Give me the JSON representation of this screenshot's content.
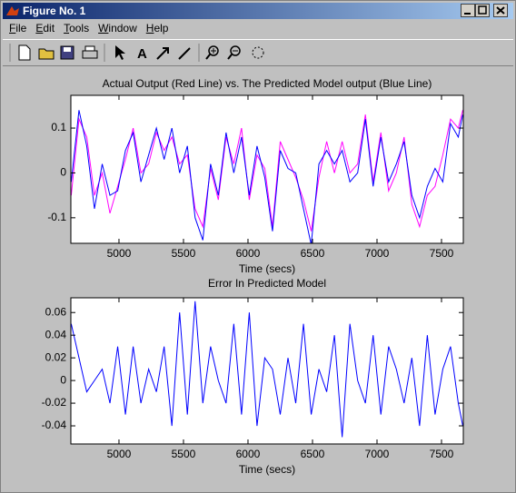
{
  "window": {
    "title": "Figure No. 1",
    "menu": [
      "File",
      "Edit",
      "Tools",
      "Window",
      "Help"
    ]
  },
  "chart_data": [
    {
      "type": "line",
      "title": "Actual Output (Red Line) vs. The Predicted Model output (Blue Line)",
      "x_label": "Time (secs)",
      "x": [
        4630,
        4690,
        4750,
        4810,
        4870,
        4930,
        4990,
        5050,
        5110,
        5170,
        5230,
        5290,
        5350,
        5410,
        5470,
        5530,
        5590,
        5650,
        5710,
        5770,
        5830,
        5890,
        5950,
        6010,
        6070,
        6130,
        6190,
        6250,
        6310,
        6370,
        6430,
        6490,
        6550,
        6610,
        6670,
        6730,
        6790,
        6850,
        6910,
        6970,
        7030,
        7090,
        7150,
        7210,
        7270,
        7330,
        7390,
        7450,
        7510,
        7570,
        7630,
        7665
      ],
      "series": [
        {
          "color": "#ff00ff",
          "values": [
            -0.05,
            0.12,
            0.08,
            -0.05,
            0.0,
            -0.09,
            -0.03,
            0.03,
            0.1,
            0.0,
            0.02,
            0.09,
            0.05,
            0.08,
            0.02,
            0.04,
            -0.08,
            -0.12,
            0.01,
            -0.06,
            0.08,
            0.02,
            0.1,
            -0.06,
            0.04,
            0.01,
            -0.12,
            0.07,
            0.03,
            -0.01,
            -0.06,
            -0.13,
            -0.01,
            0.07,
            0.0,
            0.07,
            0.0,
            0.02,
            0.13,
            -0.02,
            0.09,
            -0.04,
            0.0,
            0.08,
            -0.07,
            -0.12,
            -0.05,
            -0.03,
            0.04,
            0.12,
            0.1,
            0.14
          ]
        },
        {
          "color": "#0000ff",
          "values": [
            -0.02,
            0.14,
            0.06,
            -0.08,
            0.02,
            -0.05,
            -0.04,
            0.05,
            0.09,
            -0.02,
            0.04,
            0.1,
            0.03,
            0.1,
            0.0,
            0.06,
            -0.1,
            -0.15,
            0.02,
            -0.05,
            0.09,
            0.0,
            0.08,
            -0.05,
            0.06,
            -0.01,
            -0.13,
            0.05,
            0.01,
            0.0,
            -0.08,
            -0.16,
            0.02,
            0.05,
            0.02,
            0.05,
            -0.02,
            0.0,
            0.12,
            -0.03,
            0.08,
            -0.02,
            0.02,
            0.07,
            -0.05,
            -0.1,
            -0.03,
            0.01,
            -0.02,
            0.11,
            0.08,
            0.13
          ]
        }
      ],
      "xlim": [
        4627,
        7669
      ],
      "xticks": [
        5000,
        5500,
        6000,
        6500,
        7000,
        7500
      ],
      "ylim": [
        -0.157,
        0.173
      ],
      "yticks": [
        0.1,
        0,
        -0.1
      ]
    },
    {
      "type": "line",
      "title": "Error In Predicted Model",
      "x_label": "Time (secs)",
      "x": [
        4630,
        4690,
        4750,
        4810,
        4870,
        4930,
        4990,
        5050,
        5110,
        5170,
        5230,
        5290,
        5350,
        5410,
        5470,
        5530,
        5590,
        5650,
        5710,
        5770,
        5830,
        5890,
        5950,
        6010,
        6070,
        6130,
        6190,
        6250,
        6310,
        6370,
        6430,
        6490,
        6550,
        6610,
        6670,
        6730,
        6790,
        6850,
        6910,
        6970,
        7030,
        7090,
        7150,
        7210,
        7270,
        7330,
        7390,
        7450,
        7510,
        7570,
        7630,
        7665
      ],
      "series": [
        {
          "color": "#0000ff",
          "values": [
            0.05,
            0.02,
            -0.01,
            0.0,
            0.01,
            -0.02,
            0.03,
            -0.03,
            0.03,
            -0.02,
            0.01,
            -0.01,
            0.03,
            -0.04,
            0.06,
            -0.03,
            0.07,
            -0.02,
            0.03,
            0.0,
            -0.02,
            0.05,
            -0.03,
            0.06,
            -0.04,
            0.02,
            0.01,
            -0.03,
            0.02,
            -0.02,
            0.05,
            -0.03,
            0.01,
            -0.01,
            0.04,
            -0.05,
            0.05,
            0.0,
            -0.02,
            0.04,
            -0.03,
            0.03,
            0.01,
            -0.02,
            0.02,
            -0.04,
            0.04,
            -0.03,
            0.01,
            0.03,
            -0.02,
            -0.04
          ]
        }
      ],
      "xlim": [
        4627,
        7669
      ],
      "xticks": [
        5000,
        5500,
        6000,
        6500,
        7000,
        7500
      ],
      "ylim": [
        -0.056,
        0.073
      ],
      "yticks": [
        0.06,
        0.04,
        0.02,
        0,
        -0.02,
        -0.04
      ]
    }
  ]
}
